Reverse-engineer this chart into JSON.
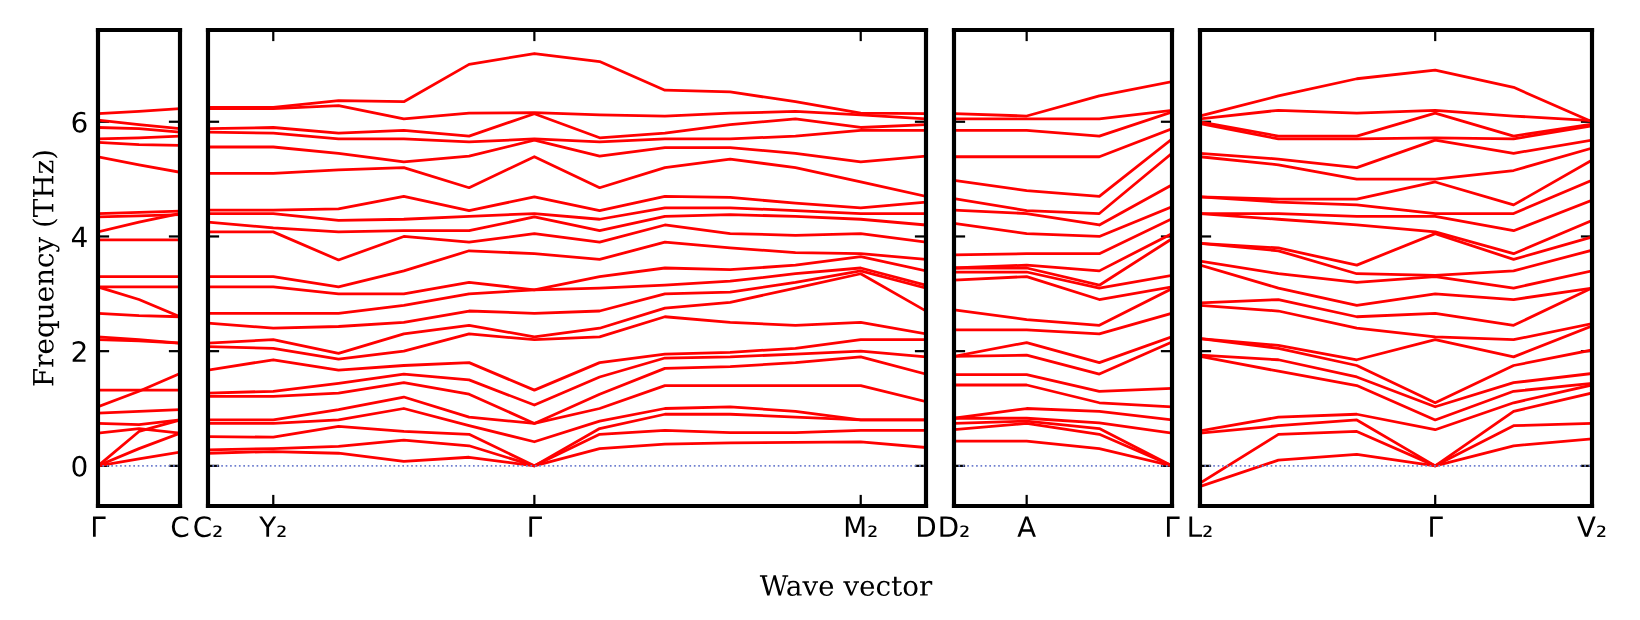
{
  "chart_data": [
    {
      "type": "line",
      "ylabel": "Frequency (THz)",
      "categories": [
        "Γ",
        null,
        "C"
      ],
      "ylim": [
        -0.7,
        7.6
      ],
      "yticks": [
        0,
        2,
        4,
        6
      ],
      "ref_lines": [
        {
          "axis": "y",
          "value": 0,
          "color": "#6f7fcf",
          "line_style": "dotted"
        }
      ],
      "series": [
        {
          "color": "#ff0000",
          "values": [
            0,
            0.12,
            0.24
          ]
        },
        {
          "color": "#ff0000",
          "values": [
            0,
            0.3,
            0.57
          ]
        },
        {
          "color": "#ff0000",
          "values": [
            0,
            0.6,
            0.8
          ]
        },
        {
          "color": "#ff0000",
          "values": [
            0.57,
            0.65,
            0.57
          ]
        },
        {
          "color": "#ff0000",
          "values": [
            0.74,
            0.72,
            0.8
          ]
        },
        {
          "color": "#ff0000",
          "values": [
            0.92,
            0.95,
            0.98
          ]
        },
        {
          "color": "#ff0000",
          "values": [
            1.03,
            1.3,
            1.61
          ]
        },
        {
          "color": "#ff0000",
          "values": [
            1.32,
            1.32,
            1.32
          ]
        },
        {
          "color": "#ff0000",
          "values": [
            2.2,
            2.18,
            2.14
          ]
        },
        {
          "color": "#ff0000",
          "values": [
            2.25,
            2.2,
            2.14
          ]
        },
        {
          "color": "#ff0000",
          "values": [
            2.66,
            2.62,
            2.6
          ]
        },
        {
          "color": "#ff0000",
          "values": [
            3.12,
            2.9,
            2.6
          ]
        },
        {
          "color": "#ff0000",
          "values": [
            3.3,
            3.3,
            3.3
          ]
        },
        {
          "color": "#ff0000",
          "values": [
            3.12,
            3.12,
            3.12
          ]
        },
        {
          "color": "#ff0000",
          "values": [
            3.94,
            3.94,
            3.94
          ]
        },
        {
          "color": "#ff0000",
          "values": [
            4.08,
            4.25,
            4.4
          ]
        },
        {
          "color": "#ff0000",
          "values": [
            4.34,
            4.36,
            4.38
          ]
        },
        {
          "color": "#ff0000",
          "values": [
            4.4,
            4.42,
            4.44
          ]
        },
        {
          "color": "#ff0000",
          "values": [
            5.39,
            5.25,
            5.12
          ]
        },
        {
          "color": "#ff0000",
          "values": [
            5.64,
            5.6,
            5.59
          ]
        },
        {
          "color": "#ff0000",
          "values": [
            5.7,
            5.72,
            5.75
          ]
        },
        {
          "color": "#ff0000",
          "values": [
            5.9,
            5.88,
            5.82
          ]
        },
        {
          "color": "#ff0000",
          "values": [
            6.03,
            5.95,
            5.88
          ]
        },
        {
          "color": "#ff0000",
          "values": [
            6.14,
            6.18,
            6.23
          ]
        }
      ]
    },
    {
      "type": "line",
      "xlabel": "Wave vector",
      "categories": [
        "C₂",
        "Y₂",
        null,
        null,
        null,
        "Γ",
        null,
        null,
        null,
        null,
        "M₂",
        "D"
      ],
      "ylim": [
        -0.7,
        7.6
      ],
      "tick_labels": "x",
      "ref_lines": [
        {
          "axis": "y",
          "value": 0,
          "color": "#6f7fcf",
          "line_style": "dotted"
        }
      ],
      "series": [
        {
          "color": "#ff0000",
          "values": [
            0.22,
            0.25,
            0.22,
            0.08,
            0.15,
            0,
            0.3,
            0.38,
            0.4,
            0.41,
            0.42,
            0.32
          ]
        },
        {
          "color": "#ff0000",
          "values": [
            0.28,
            0.3,
            0.34,
            0.45,
            0.35,
            0,
            0.55,
            0.62,
            0.58,
            0.58,
            0.62,
            0.62
          ]
        },
        {
          "color": "#ff0000",
          "values": [
            0.51,
            0.5,
            0.69,
            0.6,
            0.55,
            0,
            0.65,
            0.9,
            0.9,
            0.85,
            0.8,
            0.8
          ]
        },
        {
          "color": "#ff0000",
          "values": [
            0.74,
            0.74,
            0.8,
            1.0,
            0.7,
            0.42,
            0.78,
            1.0,
            1.03,
            0.95,
            0.8,
            0.8
          ]
        },
        {
          "color": "#ff0000",
          "values": [
            0.8,
            0.8,
            0.98,
            1.2,
            0.85,
            0.74,
            1.0,
            1.4,
            1.4,
            1.4,
            1.4,
            1.12
          ]
        },
        {
          "color": "#ff0000",
          "values": [
            1.21,
            1.21,
            1.27,
            1.45,
            1.25,
            0.74,
            1.25,
            1.7,
            1.73,
            1.8,
            1.9,
            1.6
          ]
        },
        {
          "color": "#ff0000",
          "values": [
            1.27,
            1.3,
            1.44,
            1.6,
            1.5,
            1.06,
            1.55,
            1.88,
            1.9,
            1.95,
            2.0,
            1.9
          ]
        },
        {
          "color": "#ff0000",
          "values": [
            1.67,
            1.85,
            1.67,
            1.75,
            1.8,
            1.32,
            1.8,
            1.95,
            1.98,
            2.05,
            2.2,
            2.2
          ]
        },
        {
          "color": "#ff0000",
          "values": [
            2.08,
            2.05,
            1.86,
            2.0,
            2.3,
            2.2,
            2.25,
            2.6,
            2.5,
            2.45,
            2.5,
            2.3
          ]
        },
        {
          "color": "#ff0000",
          "values": [
            2.14,
            2.2,
            1.96,
            2.3,
            2.45,
            2.25,
            2.4,
            2.75,
            2.85,
            3.1,
            3.35,
            2.7
          ]
        },
        {
          "color": "#ff0000",
          "values": [
            2.49,
            2.4,
            2.43,
            2.5,
            2.7,
            2.66,
            2.7,
            3.0,
            3.03,
            3.2,
            3.4,
            3.1
          ]
        },
        {
          "color": "#ff0000",
          "values": [
            2.66,
            2.66,
            2.66,
            2.8,
            3.0,
            3.07,
            3.1,
            3.15,
            3.22,
            3.35,
            3.45,
            3.15
          ]
        },
        {
          "color": "#ff0000",
          "values": [
            3.12,
            3.12,
            3.0,
            3.0,
            3.2,
            3.07,
            3.3,
            3.45,
            3.42,
            3.5,
            3.65,
            3.4
          ]
        },
        {
          "color": "#ff0000",
          "values": [
            3.3,
            3.3,
            3.12,
            3.4,
            3.75,
            3.7,
            3.6,
            3.9,
            3.8,
            3.72,
            3.7,
            3.6
          ]
        },
        {
          "color": "#ff0000",
          "values": [
            4.08,
            4.08,
            3.59,
            4.0,
            3.9,
            4.05,
            3.9,
            4.2,
            4.05,
            4.02,
            4.05,
            3.9
          ]
        },
        {
          "color": "#ff0000",
          "values": [
            4.25,
            4.15,
            4.08,
            4.1,
            4.1,
            4.34,
            4.1,
            4.35,
            4.38,
            4.35,
            4.3,
            4.2
          ]
        },
        {
          "color": "#ff0000",
          "values": [
            4.4,
            4.4,
            4.28,
            4.3,
            4.35,
            4.4,
            4.3,
            4.5,
            4.5,
            4.45,
            4.4,
            4.4
          ]
        },
        {
          "color": "#ff0000",
          "values": [
            4.46,
            4.46,
            4.48,
            4.7,
            4.45,
            4.69,
            4.45,
            4.7,
            4.68,
            4.58,
            4.5,
            4.6
          ]
        },
        {
          "color": "#ff0000",
          "values": [
            5.1,
            5.1,
            5.16,
            5.2,
            4.85,
            5.39,
            4.85,
            5.2,
            5.35,
            5.2,
            4.95,
            4.7
          ]
        },
        {
          "color": "#ff0000",
          "values": [
            5.56,
            5.56,
            5.45,
            5.3,
            5.4,
            5.68,
            5.4,
            5.55,
            5.55,
            5.45,
            5.3,
            5.4
          ]
        },
        {
          "color": "#ff0000",
          "values": [
            5.82,
            5.8,
            5.7,
            5.7,
            5.65,
            5.7,
            5.65,
            5.7,
            5.7,
            5.75,
            5.85,
            5.85
          ]
        },
        {
          "color": "#ff0000",
          "values": [
            5.88,
            5.9,
            5.8,
            5.85,
            5.75,
            6.14,
            5.72,
            5.8,
            5.95,
            6.05,
            5.9,
            5.95
          ]
        },
        {
          "color": "#ff0000",
          "values": [
            6.23,
            6.23,
            6.28,
            6.05,
            6.15,
            6.16,
            6.12,
            6.1,
            6.15,
            6.18,
            6.12,
            6.05
          ]
        },
        {
          "color": "#ff0000",
          "values": [
            6.25,
            6.25,
            6.37,
            6.35,
            7.0,
            7.19,
            7.05,
            6.55,
            6.52,
            6.35,
            6.15,
            6.14
          ]
        }
      ]
    },
    {
      "type": "line",
      "categories": [
        "D₂",
        "A",
        null,
        "Γ"
      ],
      "ylim": [
        -0.7,
        7.6
      ],
      "tick_labels": "x",
      "ref_lines": [
        {
          "axis": "y",
          "value": 0,
          "color": "#6f7fcf",
          "line_style": "dotted"
        }
      ],
      "series": [
        {
          "color": "#ff0000",
          "values": [
            0.43,
            0.43,
            0.3,
            0
          ]
        },
        {
          "color": "#ff0000",
          "values": [
            0.63,
            0.74,
            0.55,
            0
          ]
        },
        {
          "color": "#ff0000",
          "values": [
            0.74,
            0.78,
            0.65,
            0
          ]
        },
        {
          "color": "#ff0000",
          "values": [
            0.83,
            0.83,
            0.75,
            0.57
          ]
        },
        {
          "color": "#ff0000",
          "values": [
            0.83,
            1.0,
            0.95,
            0.8
          ]
        },
        {
          "color": "#ff0000",
          "values": [
            1.41,
            1.41,
            1.1,
            1.03
          ]
        },
        {
          "color": "#ff0000",
          "values": [
            1.59,
            1.59,
            1.3,
            1.35
          ]
        },
        {
          "color": "#ff0000",
          "values": [
            1.91,
            1.93,
            1.6,
            2.16
          ]
        },
        {
          "color": "#ff0000",
          "values": [
            1.91,
            2.15,
            1.8,
            2.25
          ]
        },
        {
          "color": "#ff0000",
          "values": [
            2.37,
            2.37,
            2.3,
            2.66
          ]
        },
        {
          "color": "#ff0000",
          "values": [
            2.72,
            2.55,
            2.45,
            3.09
          ]
        },
        {
          "color": "#ff0000",
          "values": [
            3.24,
            3.3,
            2.9,
            3.12
          ]
        },
        {
          "color": "#ff0000",
          "values": [
            3.38,
            3.38,
            3.1,
            3.32
          ]
        },
        {
          "color": "#ff0000",
          "values": [
            3.45,
            3.45,
            3.15,
            3.96
          ]
        },
        {
          "color": "#ff0000",
          "values": [
            3.45,
            3.5,
            3.4,
            4.05
          ]
        },
        {
          "color": "#ff0000",
          "values": [
            3.68,
            3.7,
            3.7,
            4.31
          ]
        },
        {
          "color": "#ff0000",
          "values": [
            4.23,
            4.05,
            4.0,
            4.52
          ]
        },
        {
          "color": "#ff0000",
          "values": [
            4.46,
            4.4,
            4.2,
            4.9
          ]
        },
        {
          "color": "#ff0000",
          "values": [
            4.66,
            4.45,
            4.4,
            5.45
          ]
        },
        {
          "color": "#ff0000",
          "values": [
            4.98,
            4.8,
            4.7,
            5.7
          ]
        },
        {
          "color": "#ff0000",
          "values": [
            5.39,
            5.39,
            5.39,
            5.88
          ]
        },
        {
          "color": "#ff0000",
          "values": [
            5.85,
            5.85,
            5.75,
            6.17
          ]
        },
        {
          "color": "#ff0000",
          "values": [
            6.05,
            6.05,
            6.05,
            6.2
          ]
        },
        {
          "color": "#ff0000",
          "values": [
            6.14,
            6.1,
            6.45,
            6.7
          ]
        }
      ]
    },
    {
      "type": "line",
      "categories": [
        "L₂",
        null,
        null,
        "Γ",
        null,
        "V₂"
      ],
      "ylim": [
        -0.7,
        7.6
      ],
      "tick_labels": "x",
      "ref_lines": [
        {
          "axis": "y",
          "value": 0,
          "color": "#6f7fcf",
          "line_style": "dotted"
        }
      ],
      "series": [
        {
          "color": "#ff0000",
          "values": [
            -0.36,
            0.1,
            0.2,
            0,
            0.35,
            0.47
          ]
        },
        {
          "color": "#ff0000",
          "values": [
            -0.3,
            0.55,
            0.6,
            0,
            0.7,
            0.74
          ]
        },
        {
          "color": "#ff0000",
          "values": [
            0.57,
            0.7,
            0.8,
            0,
            0.95,
            1.27
          ]
        },
        {
          "color": "#ff0000",
          "values": [
            0.61,
            0.85,
            0.9,
            0.63,
            1.1,
            1.41
          ]
        },
        {
          "color": "#ff0000",
          "values": [
            1.91,
            1.65,
            1.4,
            0.8,
            1.3,
            1.44
          ]
        },
        {
          "color": "#ff0000",
          "values": [
            1.93,
            1.85,
            1.55,
            1.03,
            1.45,
            1.61
          ]
        },
        {
          "color": "#ff0000",
          "values": [
            2.22,
            2.05,
            1.75,
            1.1,
            1.75,
            2.02
          ]
        },
        {
          "color": "#ff0000",
          "values": [
            2.22,
            2.1,
            1.85,
            2.2,
            1.9,
            2.44
          ]
        },
        {
          "color": "#ff0000",
          "values": [
            2.8,
            2.7,
            2.4,
            2.25,
            2.2,
            2.48
          ]
        },
        {
          "color": "#ff0000",
          "values": [
            2.84,
            2.9,
            2.6,
            2.66,
            2.45,
            3.1
          ]
        },
        {
          "color": "#ff0000",
          "values": [
            3.5,
            3.1,
            2.8,
            3.0,
            2.9,
            3.1
          ]
        },
        {
          "color": "#ff0000",
          "values": [
            3.57,
            3.35,
            3.2,
            3.3,
            3.1,
            3.4
          ]
        },
        {
          "color": "#ff0000",
          "values": [
            3.88,
            3.75,
            3.35,
            3.32,
            3.4,
            3.76
          ]
        },
        {
          "color": "#ff0000",
          "values": [
            3.88,
            3.8,
            3.5,
            4.05,
            3.6,
            3.99
          ]
        },
        {
          "color": "#ff0000",
          "values": [
            4.4,
            4.3,
            4.2,
            4.08,
            3.7,
            4.28
          ]
        },
        {
          "color": "#ff0000",
          "values": [
            4.4,
            4.4,
            4.35,
            4.35,
            4.1,
            4.63
          ]
        },
        {
          "color": "#ff0000",
          "values": [
            4.69,
            4.6,
            4.55,
            4.4,
            4.4,
            4.98
          ]
        },
        {
          "color": "#ff0000",
          "values": [
            4.69,
            4.65,
            4.65,
            4.95,
            4.55,
            5.33
          ]
        },
        {
          "color": "#ff0000",
          "values": [
            5.39,
            5.25,
            5.0,
            5.0,
            5.15,
            5.54
          ]
        },
        {
          "color": "#ff0000",
          "values": [
            5.45,
            5.35,
            5.2,
            5.68,
            5.45,
            5.68
          ]
        },
        {
          "color": "#ff0000",
          "values": [
            5.97,
            5.7,
            5.7,
            5.72,
            5.7,
            5.93
          ]
        },
        {
          "color": "#ff0000",
          "values": [
            6.0,
            5.75,
            5.75,
            6.15,
            5.75,
            5.96
          ]
        },
        {
          "color": "#ff0000",
          "values": [
            6.05,
            6.2,
            6.15,
            6.2,
            6.1,
            6.02
          ]
        },
        {
          "color": "#ff0000",
          "values": [
            6.1,
            6.45,
            6.75,
            6.9,
            6.6,
            6.0
          ]
        }
      ]
    }
  ]
}
